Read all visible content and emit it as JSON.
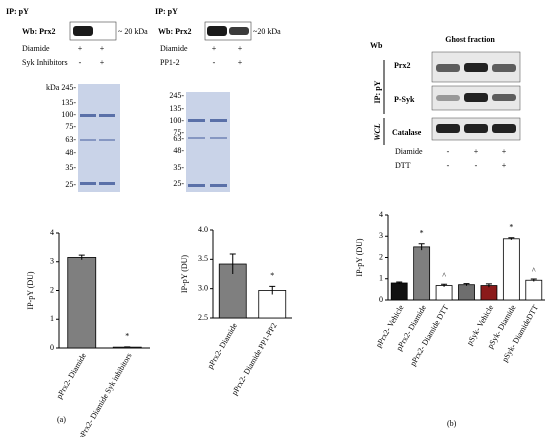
{
  "labels": [
    "(a)",
    "(b)"
  ],
  "blot1": {
    "ip": "IP: pY",
    "wb": "Wb: Prx2",
    "size": "~ 20 kDa",
    "rows": [
      {
        "label": "Diamide",
        "signs": [
          "+",
          "+"
        ]
      },
      {
        "label": "Syk Inhibitors",
        "signs": [
          "-",
          "+"
        ]
      }
    ],
    "ladder": [
      "kDa 245-",
      "135-",
      "100-",
      "75-",
      "63-",
      "48-",
      "35-",
      "25-"
    ]
  },
  "blot2": {
    "ip": "IP: pY",
    "wb": "Wb: Prx2",
    "size": "~20 kDa",
    "rows": [
      {
        "label": "Diamide",
        "signs": [
          "+",
          "+"
        ]
      },
      {
        "label": "PP1-2",
        "signs": [
          "-",
          "+"
        ]
      }
    ],
    "ladder": [
      "245-",
      "135-",
      "100-",
      "75-",
      "63-",
      "48-",
      "35-",
      "25-"
    ]
  },
  "blot3": {
    "wb": "Wb",
    "fraction": "Ghost fraction",
    "ip": "IP: pY",
    "wcl": "WCL",
    "bands": [
      "Prx2",
      "P-Syk",
      "Catalase"
    ],
    "rows": [
      {
        "label": "Diamide",
        "signs": [
          "-",
          "+",
          "+"
        ]
      },
      {
        "label": "DTT",
        "signs": [
          "-",
          "-",
          "+"
        ]
      }
    ]
  },
  "chart_data": [
    {
      "type": "bar",
      "ylabel": "IP-pY (DU)",
      "categories": [
        "pPrx2- Diamide",
        "pPrx2- Diamide Syk inhibitors"
      ],
      "values": [
        3.15,
        0.03
      ],
      "errors": [
        0.08,
        0.01
      ],
      "colors": [
        "#7f7f7f",
        "#ffffff"
      ],
      "annotations": [
        null,
        "*"
      ],
      "ylim": [
        0,
        4
      ],
      "yticks": [
        0,
        1,
        2,
        3,
        4
      ]
    },
    {
      "type": "bar",
      "ylabel": "IP-pY (DU)",
      "categories": [
        "pPrx2- Diamide",
        "pPrx2- Diamide PP1-PP2"
      ],
      "values": [
        3.42,
        2.97
      ],
      "errors": [
        0.17,
        0.07
      ],
      "colors": [
        "#7f7f7f",
        "#ffffff"
      ],
      "annotations": [
        null,
        "*"
      ],
      "ylim": [
        2.5,
        4
      ],
      "yticks": [
        2.5,
        {
          "value": 3,
          "label": "3.0"
        },
        3.5,
        {
          "value": 4,
          "label": "4.0"
        }
      ]
    },
    {
      "type": "bar",
      "ylabel": "IP-pY (DU)",
      "categories": [
        "pPrx2- Vehicle",
        "pPrx2- Diamide",
        "pPrx2- Diamide DTT",
        null,
        "pSyk- Vehicle",
        "pSyk- Diamide",
        "pSyk- DiamideDTT"
      ],
      "values": [
        0.8,
        2.5,
        0.68,
        0.72,
        0.68,
        2.88,
        0.93
      ],
      "errors": [
        0.05,
        0.15,
        0.06,
        0.05,
        0.08,
        0.05,
        0.06
      ],
      "colors": [
        "#111111",
        "#7f7f7f",
        "#ffffff",
        "#6e6e6e",
        "#8b1a1a",
        "#ffffff",
        "#ffffff"
      ],
      "annotations": [
        null,
        "*",
        "^",
        null,
        null,
        "*",
        "^"
      ],
      "ylim": [
        0,
        4
      ],
      "yticks": [
        0,
        1,
        2,
        3,
        4
      ]
    }
  ]
}
